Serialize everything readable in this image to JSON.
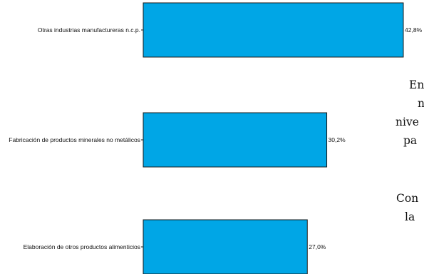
{
  "chart_data": {
    "type": "bar",
    "orientation": "horizontal",
    "categories": [
      "Otras industrias manufactureras n.c.p.",
      "Fabricación de productos minerales no metálicos",
      "Elaboración de otros productos alimenticios"
    ],
    "values": [
      42.8,
      30.2,
      27.0
    ],
    "value_labels": [
      "42,8%",
      "30,2%",
      "27,0%"
    ],
    "unit": "%",
    "xlim": [
      0,
      42.8
    ],
    "grid": false,
    "legend": "none",
    "colors": {
      "bar_fill": "#00a6e6",
      "bar_stroke": "#1a1a1a"
    }
  },
  "side_text": [
    "En",
    "n",
    "nive",
    "pa",
    "Con",
    "la"
  ]
}
